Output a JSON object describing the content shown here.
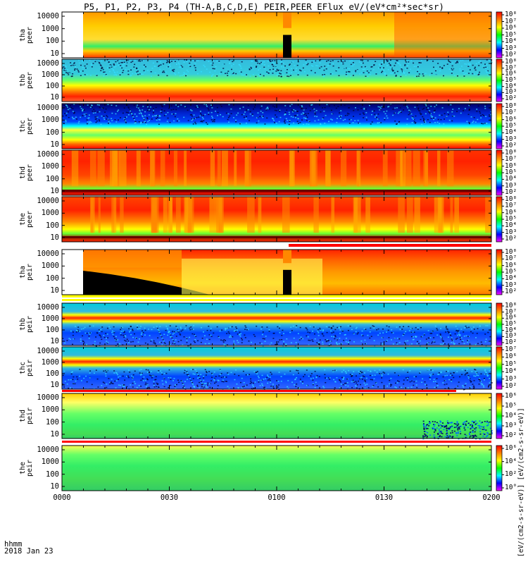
{
  "title": "P5, P1, P2, P3, P4 (TH-A,B,C,D,E) PEIR,PEER EFlux eV/(eV*cm²*sec*sr)",
  "colorbar_units_label": "[eV/(cm2-s-sr-eV)] [eV/(cm2-s-sr-eV)]",
  "footer": {
    "label": "hhmm",
    "date": "2018 Jan 23"
  },
  "chart_data": {
    "type": "heatmap",
    "x_ticks": [
      "0000",
      "0030",
      "0100",
      "0130",
      "0200"
    ],
    "y_ticks": [
      "10",
      "100",
      "1000",
      "10000"
    ],
    "y_scale": "log",
    "panels": [
      {
        "label": [
          "tha",
          "peer"
        ],
        "colorbar_ticks": [
          "10²",
          "10³",
          "10⁴",
          "10⁵",
          "10⁶",
          "10⁷",
          "10⁸"
        ],
        "pattern": "tha_peer"
      },
      {
        "label": [
          "thb",
          "peer"
        ],
        "colorbar_ticks": [
          "10²",
          "10³",
          "10⁴",
          "10⁵",
          "10⁶",
          "10⁷",
          "10⁸"
        ],
        "pattern": "bands_low"
      },
      {
        "label": [
          "thc",
          "peer"
        ],
        "colorbar_ticks": [
          "10²",
          "10³",
          "10⁴",
          "10⁵",
          "10⁶",
          "10⁷",
          "10⁸"
        ],
        "pattern": "bands_mid"
      },
      {
        "label": [
          "thd",
          "peer"
        ],
        "colorbar_ticks": [
          "10²",
          "10³",
          "10⁴",
          "10⁵",
          "10⁶",
          "10⁷",
          "10⁸"
        ],
        "pattern": "thd_peer"
      },
      {
        "label": [
          "the",
          "peer"
        ],
        "colorbar_ticks": [
          "10²",
          "10³",
          "10⁴",
          "10⁵",
          "10⁶",
          "10⁷",
          "10⁸"
        ],
        "pattern": "the_peer"
      },
      {
        "label": [
          "tha",
          "peir"
        ],
        "colorbar_ticks": [
          "10²",
          "10³",
          "10⁴",
          "10⁵",
          "10⁶",
          "10⁷",
          "10⁸"
        ],
        "pattern": "tha_peir"
      },
      {
        "label": [
          "thb",
          "peir"
        ],
        "colorbar_ticks": [
          "10²",
          "10³",
          "10⁴",
          "10⁵",
          "10⁶",
          "10⁷",
          "10⁸"
        ],
        "pattern": "ion_band"
      },
      {
        "label": [
          "thc",
          "peir"
        ],
        "colorbar_ticks": [
          "10²",
          "10³",
          "10⁴",
          "10⁵",
          "10⁶",
          "10⁷"
        ],
        "pattern": "ion_band"
      },
      {
        "label": [
          "thd",
          "peir"
        ],
        "colorbar_ticks": [
          "10²",
          "10³",
          "10⁴",
          "10⁵",
          "10⁶"
        ],
        "pattern": "thd_peir"
      },
      {
        "label": [
          "the",
          "peir"
        ],
        "colorbar_ticks": [
          "10°",
          "10²",
          "10⁴",
          "10⁶"
        ],
        "pattern": "the_peir"
      }
    ],
    "colormap": [
      "#ff00ff",
      "#0000ff",
      "#00ffff",
      "#00ff00",
      "#ffff00",
      "#ff8000",
      "#ff0000"
    ]
  }
}
